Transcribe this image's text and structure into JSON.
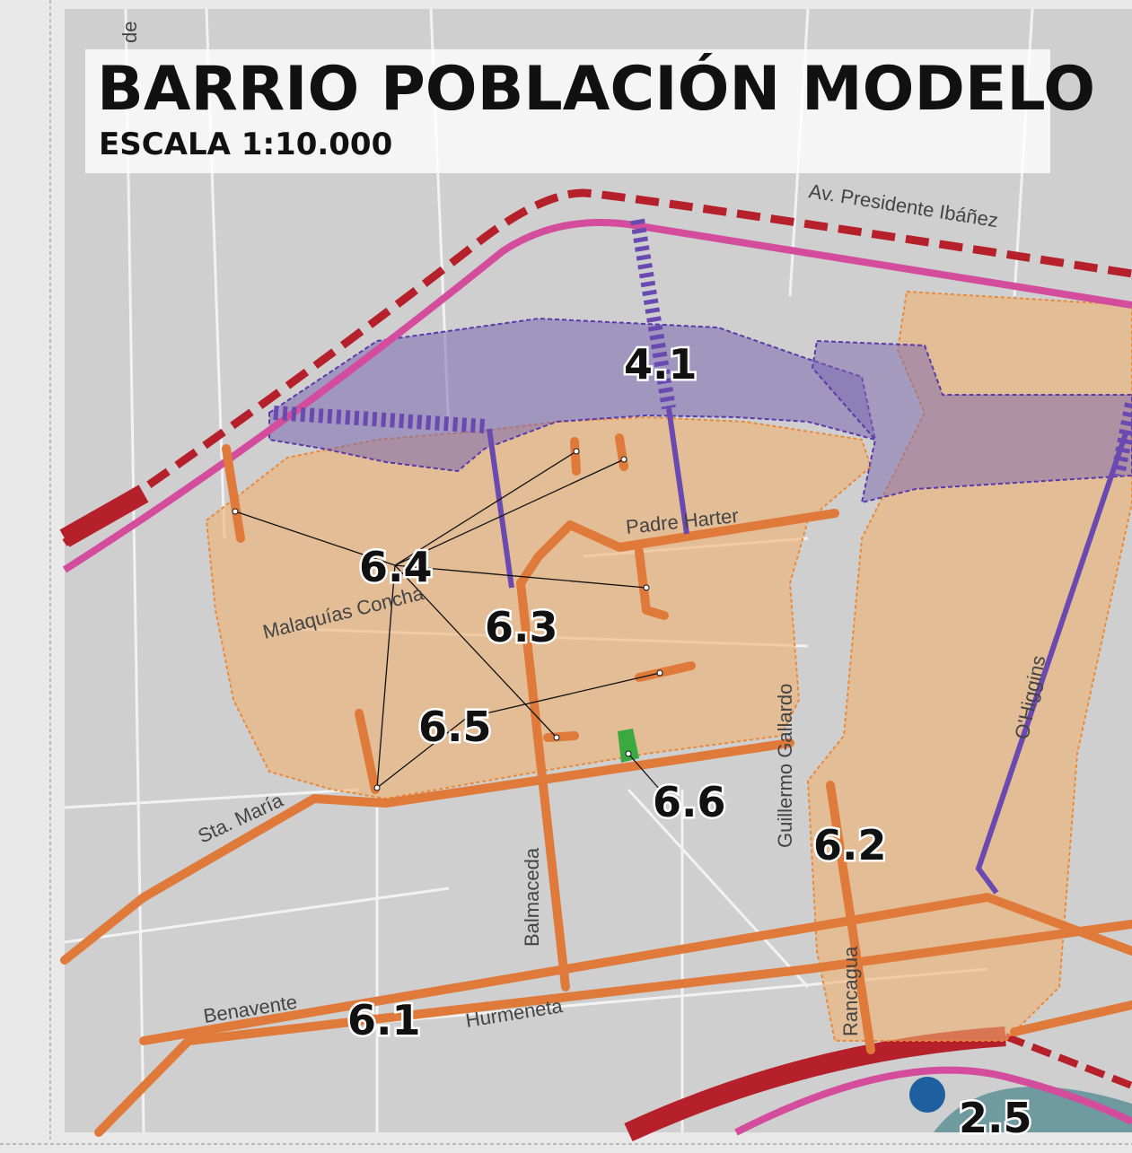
{
  "header": {
    "title": "BARRIO POBLACIÓN MODELO",
    "subtitle": "ESCALA 1:10.000"
  },
  "streets": [
    "de",
    "Av. Presidente Ibáñez",
    "Padre Harter",
    "Malaquías Concha",
    "Guillermo Gallardo",
    "O'Higgins",
    "Sta. María",
    "Balmaceda",
    "Rancagua",
    "Benavente",
    "Hurmeneta"
  ],
  "zones": [
    "4.1",
    "6.4",
    "6.3",
    "6.5",
    "6.6",
    "6.2",
    "6.1",
    "2.5"
  ]
}
